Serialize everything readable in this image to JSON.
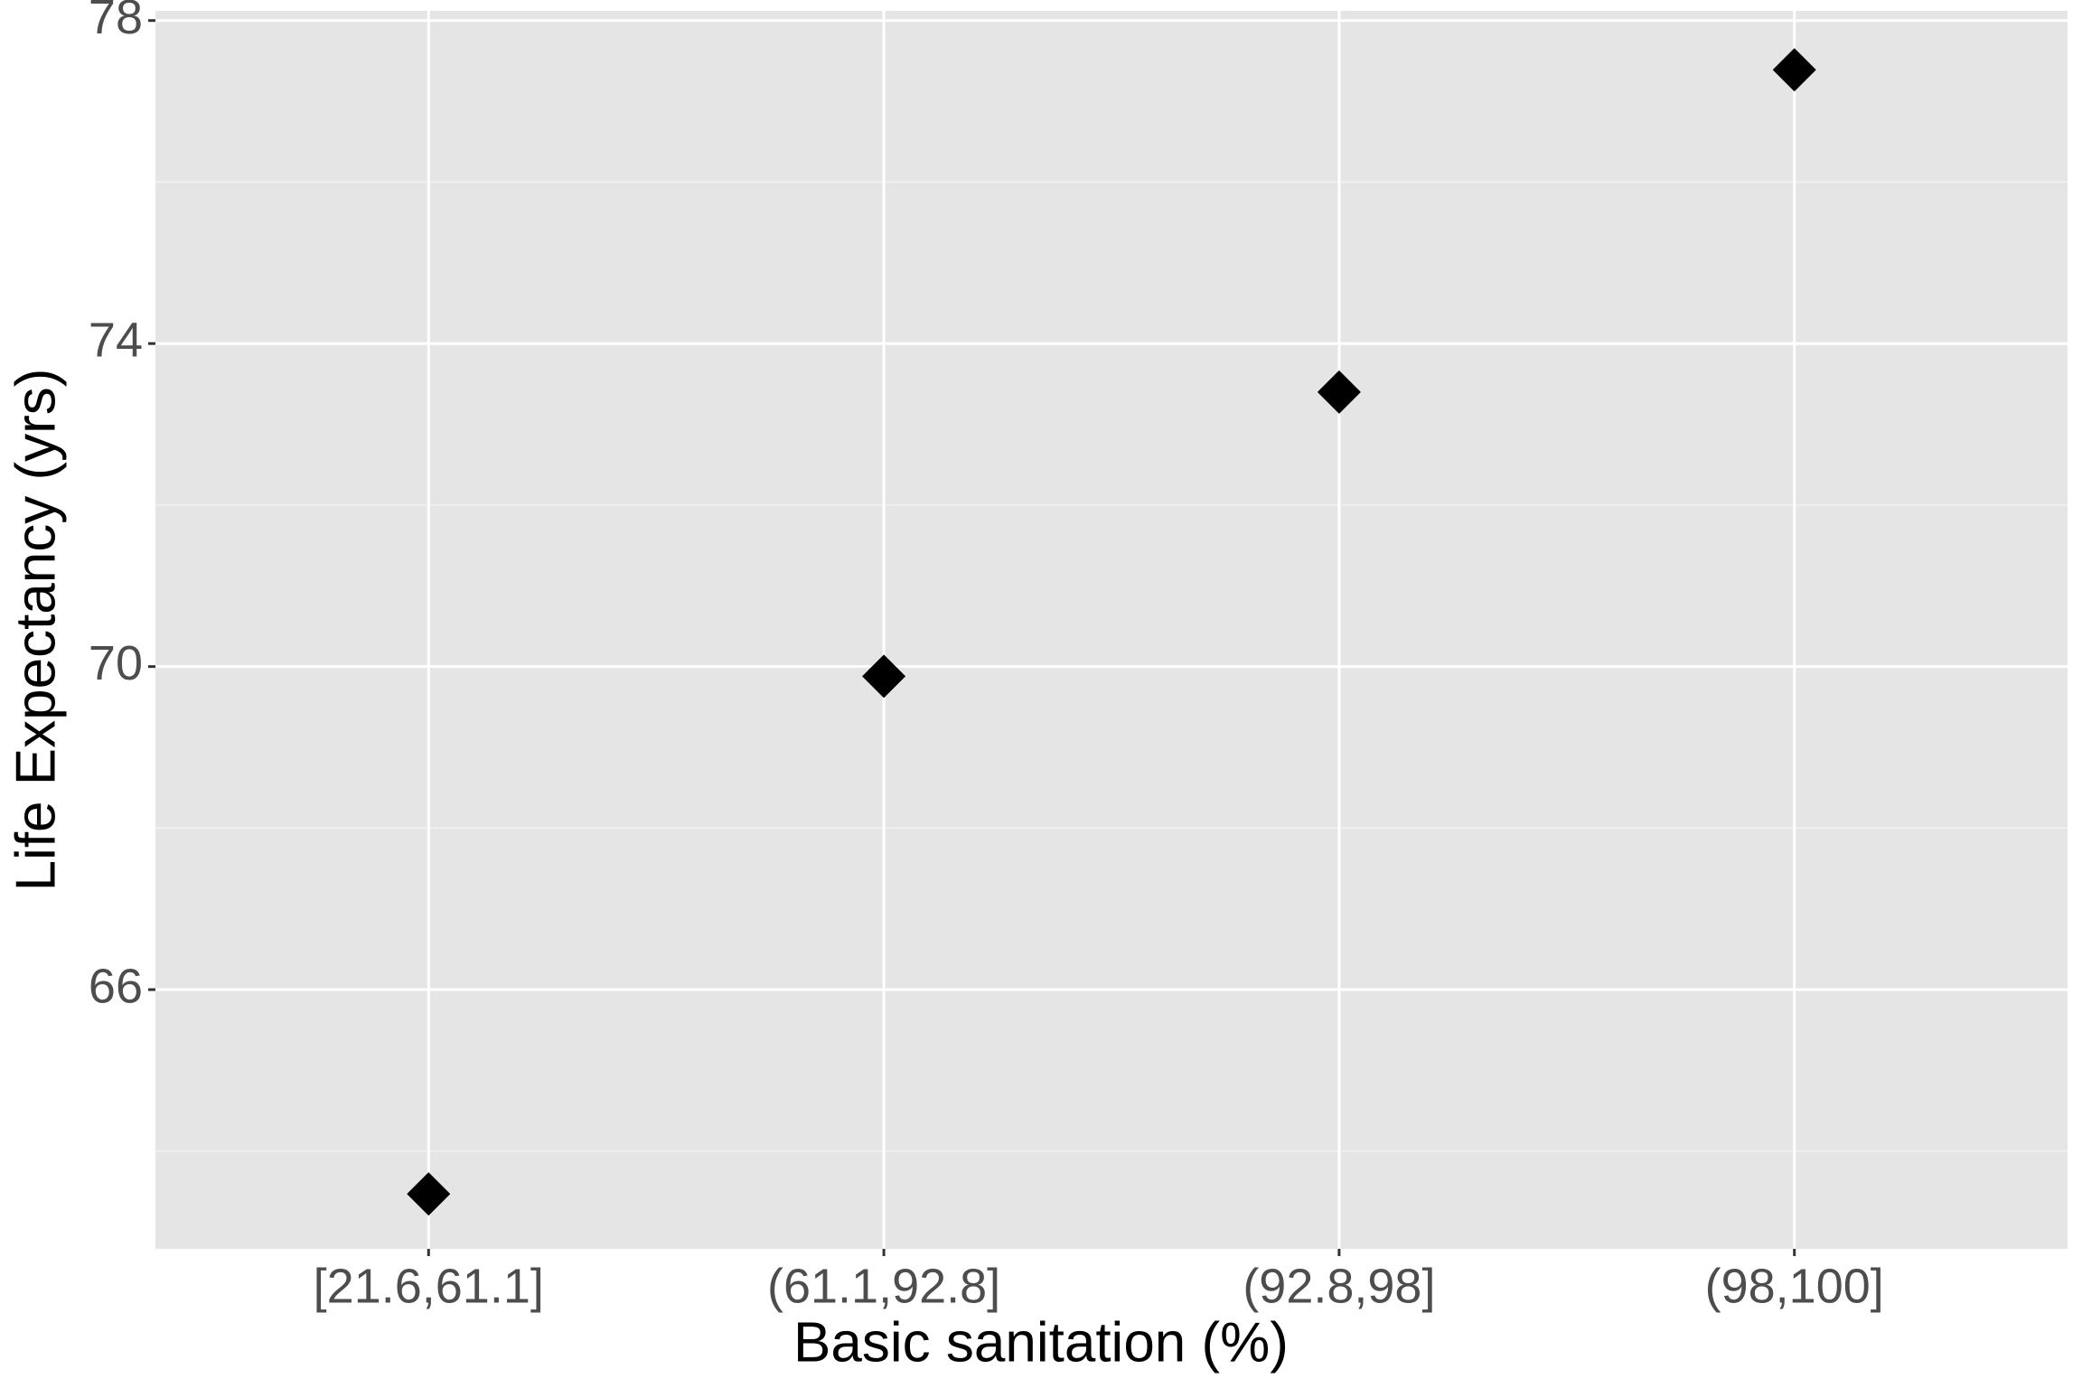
{
  "chart_data": {
    "type": "scatter",
    "x_label": "Basic sanitation (%)",
    "y_label": "Life Expectancy (yrs)",
    "categories": [
      "[21.6,61.1]",
      "(61.1,92.8]",
      "(92.8,98]",
      "(98,100]"
    ],
    "values": [
      63.47,
      69.88,
      73.4,
      77.39
    ],
    "color": "#000000",
    "marker": "diamond",
    "ylim": [
      62.79,
      78.12
    ],
    "yticks": [
      66,
      70,
      74,
      78
    ],
    "minor_yticks": [
      64,
      68,
      72,
      76
    ],
    "grid": true
  }
}
